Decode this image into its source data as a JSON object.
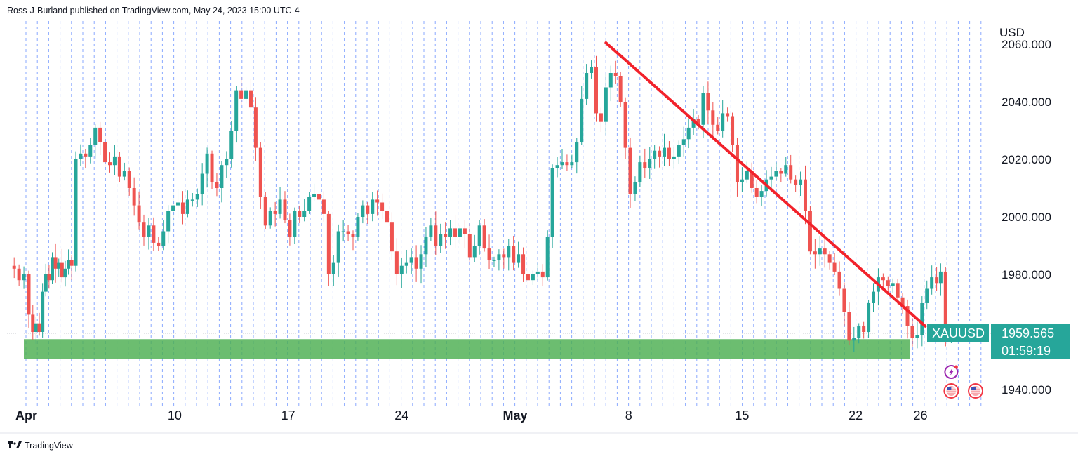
{
  "header": {
    "published_by": "Ross-J-Burland published on TradingView.com, May 24, 2023 15:00 UTC-4"
  },
  "footer": {
    "brand": "TradingView",
    "logo_icon": "tradingview-logo-icon"
  },
  "colors": {
    "up": "#26a69a",
    "down": "#ef5350",
    "trendline": "#f2222b",
    "support_zone": "#4caf50",
    "grid": "#2962ff",
    "price_tag": "#26a69a"
  },
  "chart_data": {
    "type": "candlestick",
    "symbol": "XAUUSD",
    "currency_label": "USD",
    "last_price": "1959.565",
    "countdown": "01:59:19",
    "y_axis": {
      "range": [
        1930,
        2067
      ],
      "ticks": [
        {
          "value": 2060,
          "label": "2060.000"
        },
        {
          "value": 2040,
          "label": "2040.000"
        },
        {
          "value": 2020,
          "label": "2020.000"
        },
        {
          "value": 2000,
          "label": "2000.000"
        },
        {
          "value": 1980,
          "label": "1980.000"
        },
        {
          "value": 1940,
          "label": "1940.000"
        }
      ]
    },
    "x_axis": {
      "ticks": [
        {
          "day": 0,
          "label": "Apr",
          "bold": true
        },
        {
          "day": 9,
          "label": "10",
          "bold": false
        },
        {
          "day": 16,
          "label": "17",
          "bold": false
        },
        {
          "day": 23,
          "label": "24",
          "bold": false
        },
        {
          "day": 30,
          "label": "May",
          "bold": true
        },
        {
          "day": 37,
          "label": "8",
          "bold": false
        },
        {
          "day": 44,
          "label": "15",
          "bold": false
        },
        {
          "day": 51,
          "label": "22",
          "bold": false
        },
        {
          "day": 55,
          "label": "26",
          "bold": false
        }
      ]
    },
    "support_zone": {
      "low": 1950.5,
      "high": 1957.5
    },
    "trendline": {
      "from": {
        "day": 35.6,
        "price": 2060.5
      },
      "to": {
        "day": 55.3,
        "price": 1962.0
      }
    },
    "close_path": [
      [
        -1.2,
        1983
      ],
      [
        -0.9,
        1982
      ],
      [
        -0.6,
        1978
      ],
      [
        -0.3,
        1980
      ],
      [
        0.0,
        1966
      ],
      [
        0.2,
        1960
      ],
      [
        0.4,
        1963
      ],
      [
        0.6,
        1960
      ],
      [
        0.8,
        1974
      ],
      [
        1.0,
        1980
      ],
      [
        1.2,
        1978
      ],
      [
        1.4,
        1986
      ],
      [
        1.6,
        1982
      ],
      [
        1.8,
        1984
      ],
      [
        2.0,
        1979
      ],
      [
        2.2,
        1982
      ],
      [
        2.4,
        1985
      ],
      [
        2.6,
        1983
      ],
      [
        2.9,
        2020
      ],
      [
        3.2,
        2022
      ],
      [
        3.5,
        2021
      ],
      [
        3.8,
        2025
      ],
      [
        4.1,
        2031
      ],
      [
        4.4,
        2026
      ],
      [
        4.7,
        2019
      ],
      [
        5.0,
        2018
      ],
      [
        5.3,
        2021
      ],
      [
        5.6,
        2014
      ],
      [
        5.9,
        2016
      ],
      [
        6.2,
        2010
      ],
      [
        6.5,
        2004
      ],
      [
        6.8,
        1998
      ],
      [
        7.1,
        1993
      ],
      [
        7.4,
        1997
      ],
      [
        7.7,
        1991
      ],
      [
        8.0,
        1990
      ],
      [
        8.3,
        1995
      ],
      [
        8.6,
        2002
      ],
      [
        8.9,
        2004
      ],
      [
        9.2,
        2005
      ],
      [
        9.5,
        2001
      ],
      [
        9.8,
        2006
      ],
      [
        10.1,
        2006
      ],
      [
        10.4,
        2008
      ],
      [
        10.7,
        2015
      ],
      [
        11.0,
        2022
      ],
      [
        11.3,
        2012
      ],
      [
        11.6,
        2010
      ],
      [
        11.9,
        2018
      ],
      [
        12.2,
        2020
      ],
      [
        12.5,
        2030
      ],
      [
        12.8,
        2044
      ],
      [
        13.1,
        2041
      ],
      [
        13.4,
        2044
      ],
      [
        13.7,
        2038
      ],
      [
        14.0,
        2024
      ],
      [
        14.3,
        2007
      ],
      [
        14.6,
        1997
      ],
      [
        14.9,
        2002
      ],
      [
        15.2,
        2001
      ],
      [
        15.5,
        2006
      ],
      [
        15.8,
        1999
      ],
      [
        16.1,
        1993
      ],
      [
        16.4,
        2002
      ],
      [
        16.7,
        2000
      ],
      [
        17.0,
        2002
      ],
      [
        17.3,
        2007
      ],
      [
        17.6,
        2008
      ],
      [
        17.9,
        2006
      ],
      [
        18.2,
        2001
      ],
      [
        18.5,
        1980
      ],
      [
        18.8,
        1984
      ],
      [
        19.1,
        1995
      ],
      [
        19.4,
        1995
      ],
      [
        19.7,
        1994
      ],
      [
        20.0,
        1993
      ],
      [
        20.3,
        2000
      ],
      [
        20.6,
        2004
      ],
      [
        20.9,
        2001
      ],
      [
        21.2,
        2006
      ],
      [
        21.5,
        2005
      ],
      [
        21.8,
        2002
      ],
      [
        22.1,
        1998
      ],
      [
        22.4,
        1988
      ],
      [
        22.7,
        1980
      ],
      [
        23.0,
        1983
      ],
      [
        23.3,
        1984
      ],
      [
        23.6,
        1986
      ],
      [
        23.9,
        1982
      ],
      [
        24.2,
        1987
      ],
      [
        24.5,
        1993
      ],
      [
        24.8,
        1997
      ],
      [
        25.1,
        1990
      ],
      [
        25.4,
        1994
      ],
      [
        25.7,
        1993
      ],
      [
        26.0,
        1996
      ],
      [
        26.3,
        1993
      ],
      [
        26.6,
        1996
      ],
      [
        26.9,
        1994
      ],
      [
        27.2,
        1986
      ],
      [
        27.5,
        1990
      ],
      [
        27.8,
        1997
      ],
      [
        28.1,
        1989
      ],
      [
        28.4,
        1985
      ],
      [
        28.7,
        1985
      ],
      [
        29.0,
        1987
      ],
      [
        29.3,
        1986
      ],
      [
        29.6,
        1990
      ],
      [
        29.9,
        1984
      ],
      [
        30.2,
        1987
      ],
      [
        30.5,
        1980
      ],
      [
        30.8,
        1978
      ],
      [
        31.1,
        1980
      ],
      [
        31.4,
        1981
      ],
      [
        31.7,
        1979
      ],
      [
        32.0,
        1993
      ],
      [
        32.3,
        2017
      ],
      [
        32.6,
        2018
      ],
      [
        32.9,
        2019
      ],
      [
        33.2,
        2018
      ],
      [
        33.5,
        2019
      ],
      [
        33.8,
        2026
      ],
      [
        34.1,
        2041
      ],
      [
        34.4,
        2050
      ],
      [
        34.7,
        2052
      ],
      [
        35.0,
        2036
      ],
      [
        35.3,
        2033
      ],
      [
        35.6,
        2045
      ],
      [
        35.9,
        2050
      ],
      [
        36.2,
        2049
      ],
      [
        36.5,
        2040
      ],
      [
        36.8,
        2024
      ],
      [
        37.1,
        2008
      ],
      [
        37.4,
        2012
      ],
      [
        37.7,
        2019
      ],
      [
        38.0,
        2017
      ],
      [
        38.3,
        2020
      ],
      [
        38.6,
        2023
      ],
      [
        38.9,
        2021
      ],
      [
        39.2,
        2024
      ],
      [
        39.5,
        2020
      ],
      [
        39.8,
        2021
      ],
      [
        40.1,
        2025
      ],
      [
        40.4,
        2027
      ],
      [
        40.7,
        2031
      ],
      [
        41.0,
        2034
      ],
      [
        41.3,
        2032
      ],
      [
        41.6,
        2043
      ],
      [
        41.9,
        2037
      ],
      [
        42.2,
        2032
      ],
      [
        42.5,
        2030
      ],
      [
        42.8,
        2036
      ],
      [
        43.1,
        2035
      ],
      [
        43.4,
        2025
      ],
      [
        43.7,
        2012
      ],
      [
        44.0,
        2013
      ],
      [
        44.3,
        2016
      ],
      [
        44.6,
        2010
      ],
      [
        44.9,
        2007
      ],
      [
        45.2,
        2009
      ],
      [
        45.5,
        2013
      ],
      [
        45.8,
        2014
      ],
      [
        46.1,
        2016
      ],
      [
        46.4,
        2015
      ],
      [
        46.7,
        2018
      ],
      [
        47.0,
        2013
      ],
      [
        47.3,
        2011
      ],
      [
        47.6,
        2013
      ],
      [
        47.9,
        2002
      ],
      [
        48.2,
        1988
      ],
      [
        48.5,
        1987
      ],
      [
        48.8,
        1989
      ],
      [
        49.1,
        1987
      ],
      [
        49.4,
        1984
      ],
      [
        49.7,
        1981
      ],
      [
        50.0,
        1975
      ],
      [
        50.3,
        1967
      ],
      [
        50.6,
        1957
      ],
      [
        50.9,
        1958
      ],
      [
        51.2,
        1962
      ],
      [
        51.5,
        1960
      ],
      [
        51.8,
        1970
      ],
      [
        52.1,
        1974
      ],
      [
        52.4,
        1979
      ],
      [
        52.7,
        1978
      ],
      [
        53.0,
        1976
      ],
      [
        53.3,
        1977
      ],
      [
        53.6,
        1972
      ],
      [
        53.9,
        1969
      ],
      [
        54.2,
        1962
      ],
      [
        54.5,
        1958
      ],
      [
        54.8,
        1959
      ],
      [
        55.1,
        1970
      ],
      [
        55.4,
        1975
      ],
      [
        55.7,
        1979
      ],
      [
        56.0,
        1977
      ],
      [
        56.2,
        1981
      ],
      [
        56.6,
        1958
      ],
      [
        56.9,
        1959.6
      ]
    ]
  },
  "events": [
    {
      "name": "lightning-event-icon",
      "day": 56.9,
      "row": 1
    },
    {
      "name": "us-flag-event-icon",
      "day": 56.9,
      "row": 2
    },
    {
      "name": "us-flag-event-icon-future",
      "day": 58.4,
      "row": 2
    }
  ]
}
